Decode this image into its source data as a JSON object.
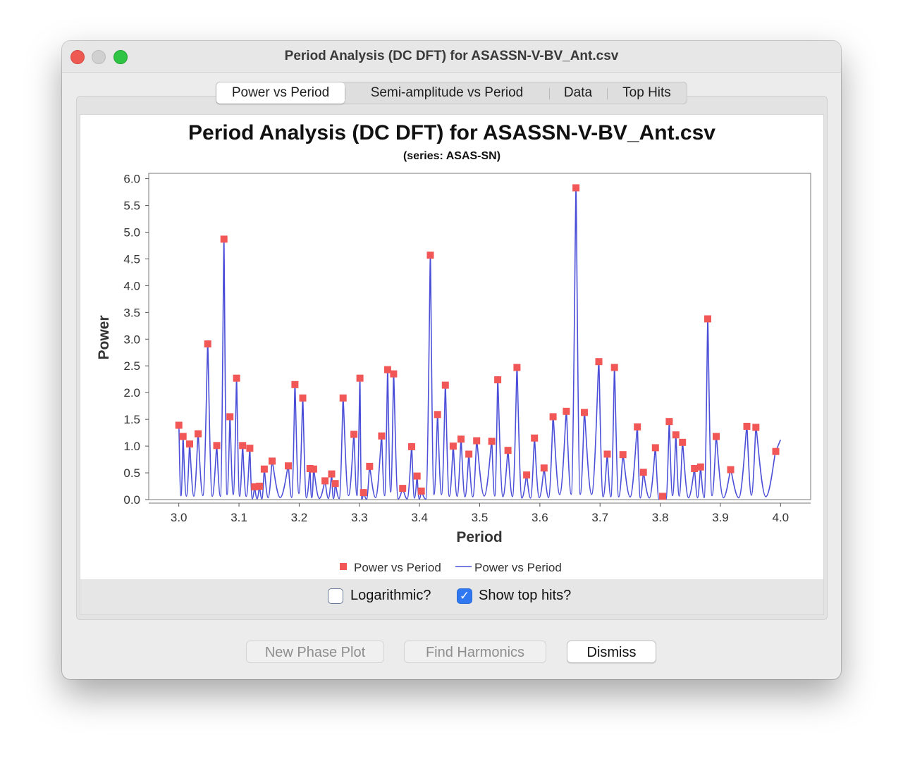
{
  "window": {
    "title": "Period Analysis (DC DFT) for ASASSN-V-BV_Ant.csv"
  },
  "tabs": [
    {
      "label": "Power vs Period",
      "active": true
    },
    {
      "label": "Semi-amplitude vs Period",
      "active": false
    },
    {
      "label": "Data",
      "active": false
    },
    {
      "label": "Top Hits",
      "active": false
    }
  ],
  "controls": {
    "logarithmic_label": "Logarithmic?",
    "logarithmic_checked": false,
    "top_hits_label": "Show top hits?",
    "top_hits_checked": true
  },
  "buttons": {
    "new_phase_plot": "New Phase Plot",
    "find_harmonics": "Find Harmonics",
    "dismiss": "Dismiss"
  },
  "colors": {
    "line": "#4b4fd8",
    "marker": "#f25757",
    "checkbox_accent": "#2f78f0"
  },
  "chart_data": {
    "type": "line",
    "title": "Period Analysis (DC DFT) for ASASSN-V-BV_Ant.csv",
    "subtitle": "(series: ASAS-SN)",
    "xlabel": "Period",
    "ylabel": "Power",
    "xlim": [
      2.95,
      4.05
    ],
    "ylim": [
      0.0,
      6.1
    ],
    "xticks": [
      "3.0",
      "3.1",
      "3.2",
      "3.3",
      "3.4",
      "3.5",
      "3.6",
      "3.7",
      "3.8",
      "3.9",
      "4.0"
    ],
    "yticks": [
      "0.0",
      "0.5",
      "1.0",
      "1.5",
      "2.0",
      "2.5",
      "3.0",
      "3.5",
      "4.0",
      "4.5",
      "5.0",
      "5.5",
      "6.0"
    ],
    "legend_placement": "bottom",
    "series": [
      {
        "name": "Power vs Period",
        "kind": "markers"
      },
      {
        "name": "Power vs Period",
        "kind": "line"
      }
    ],
    "top_hits": [
      [
        3.0,
        1.39
      ],
      [
        3.007,
        1.18
      ],
      [
        3.018,
        1.04
      ],
      [
        3.032,
        1.23
      ],
      [
        3.048,
        2.91
      ],
      [
        3.063,
        1.01
      ],
      [
        3.075,
        4.87
      ],
      [
        3.085,
        1.55
      ],
      [
        3.096,
        2.27
      ],
      [
        3.106,
        1.01
      ],
      [
        3.118,
        0.96
      ],
      [
        3.126,
        0.24
      ],
      [
        3.134,
        0.25
      ],
      [
        3.142,
        0.57
      ],
      [
        3.155,
        0.72
      ],
      [
        3.182,
        0.63
      ],
      [
        3.193,
        2.15
      ],
      [
        3.206,
        1.9
      ],
      [
        3.218,
        0.58
      ],
      [
        3.224,
        0.57
      ],
      [
        3.243,
        0.35
      ],
      [
        3.254,
        0.48
      ],
      [
        3.26,
        0.3
      ],
      [
        3.273,
        1.9
      ],
      [
        3.291,
        1.22
      ],
      [
        3.301,
        2.27
      ],
      [
        3.307,
        0.13
      ],
      [
        3.317,
        0.62
      ],
      [
        3.337,
        1.19
      ],
      [
        3.347,
        2.43
      ],
      [
        3.357,
        2.35
      ],
      [
        3.372,
        0.21
      ],
      [
        3.387,
        0.99
      ],
      [
        3.396,
        0.44
      ],
      [
        3.403,
        0.16
      ],
      [
        3.418,
        4.57
      ],
      [
        3.43,
        1.59
      ],
      [
        3.443,
        2.14
      ],
      [
        3.456,
        1.0
      ],
      [
        3.469,
        1.13
      ],
      [
        3.482,
        0.85
      ],
      [
        3.495,
        1.1
      ],
      [
        3.52,
        1.09
      ],
      [
        3.53,
        2.24
      ],
      [
        3.547,
        0.92
      ],
      [
        3.562,
        2.47
      ],
      [
        3.578,
        0.46
      ],
      [
        3.591,
        1.15
      ],
      [
        3.607,
        0.59
      ],
      [
        3.622,
        1.55
      ],
      [
        3.644,
        1.65
      ],
      [
        3.66,
        5.83
      ],
      [
        3.674,
        1.63
      ],
      [
        3.698,
        2.58
      ],
      [
        3.712,
        0.85
      ],
      [
        3.724,
        2.47
      ],
      [
        3.738,
        0.84
      ],
      [
        3.762,
        1.36
      ],
      [
        3.772,
        0.51
      ],
      [
        3.792,
        0.97
      ],
      [
        3.804,
        0.06
      ],
      [
        3.815,
        1.46
      ],
      [
        3.826,
        1.21
      ],
      [
        3.837,
        1.07
      ],
      [
        3.857,
        0.58
      ],
      [
        3.867,
        0.61
      ],
      [
        3.879,
        3.38
      ],
      [
        3.893,
        1.18
      ],
      [
        3.917,
        0.56
      ],
      [
        3.944,
        1.37
      ],
      [
        3.959,
        1.35
      ],
      [
        3.992,
        0.9
      ]
    ],
    "line_end": [
      4.0,
      1.12
    ]
  }
}
